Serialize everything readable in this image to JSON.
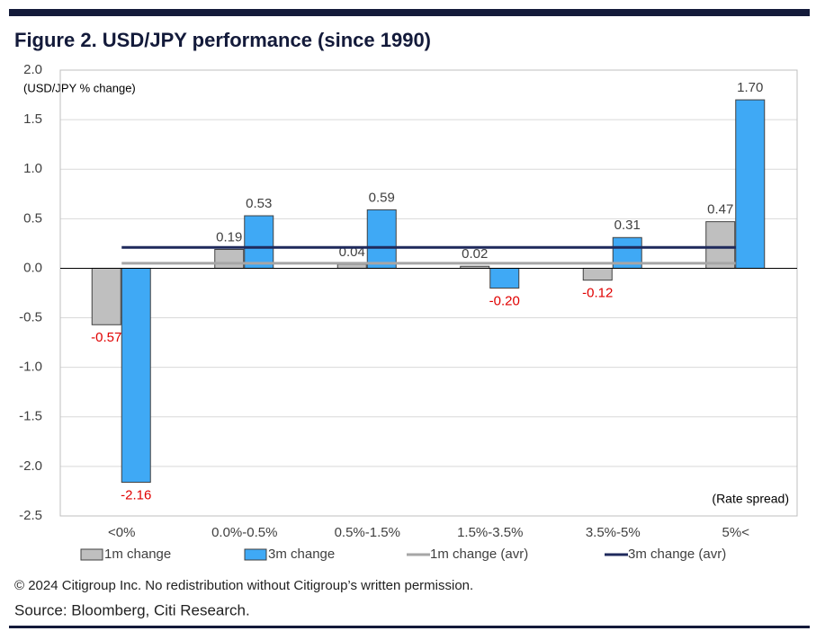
{
  "chart_data": {
    "type": "bar",
    "title": "Figure 2. USD/JPY performance (since 1990)",
    "annotations": {
      "y_unit": "(USD/JPY % change)",
      "x_unit": "(Rate spread)"
    },
    "categories": [
      "<0%",
      "0.0%-0.5%",
      "0.5%-1.5%",
      "1.5%-3.5%",
      "3.5%-5%",
      "5%<"
    ],
    "series": [
      {
        "name": "1m change",
        "type": "bar",
        "color": "#bfbfbf",
        "values": [
          -0.57,
          0.19,
          0.04,
          0.02,
          -0.12,
          0.47
        ],
        "value_labels": [
          "-0.57",
          "0.19",
          "0.04",
          "0.02",
          "-0.12",
          "0.47"
        ]
      },
      {
        "name": "3m change",
        "type": "bar",
        "color": "#3fa9f5",
        "values": [
          -2.16,
          0.53,
          0.59,
          -0.2,
          0.31,
          1.7
        ],
        "value_labels": [
          "-2.16",
          "0.53",
          "0.59",
          "-0.20",
          "0.31",
          "1.70"
        ]
      },
      {
        "name": "1m change (avr)",
        "type": "line",
        "color": "#a6a6a6",
        "values": [
          0.05,
          0.05,
          0.05,
          0.05,
          0.05,
          0.05
        ]
      },
      {
        "name": "3m change (avr)",
        "type": "line",
        "color": "#1f2a5c",
        "values": [
          0.21,
          0.21,
          0.21,
          0.21,
          0.21,
          0.21
        ]
      }
    ],
    "negative_label_color": "#e00000",
    "ylim": [
      -2.5,
      2.0
    ],
    "yticks": [
      {
        "value": -2.5,
        "label": "-2.5"
      },
      {
        "value": -2,
        "label": "-2.0"
      },
      {
        "value": -1.5,
        "label": "-1.5"
      },
      {
        "value": -1,
        "label": "-1.0"
      },
      {
        "value": -0.5,
        "label": "-0.5"
      },
      {
        "value": 0,
        "label": "0.0"
      },
      {
        "value": 0.5,
        "label": "0.5"
      },
      {
        "value": 1,
        "label": "1.0"
      },
      {
        "value": 1.5,
        "label": "1.5"
      },
      {
        "value": 2,
        "label": "2.0"
      }
    ],
    "grid": true
  },
  "footer": {
    "copyright": "© 2024 Citigroup Inc. No redistribution without Citigroup’s written permission.",
    "source": "Source: Bloomberg, Citi Research."
  }
}
